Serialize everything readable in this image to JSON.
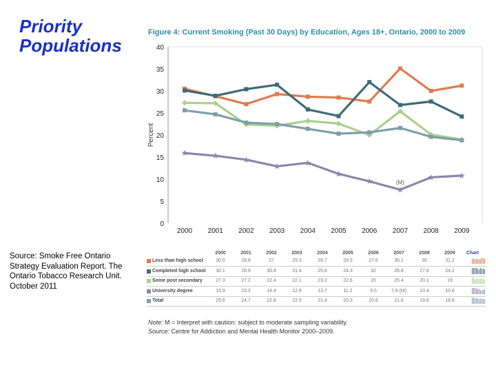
{
  "slide": {
    "title_line1": "Priority",
    "title_line2": "Populations",
    "source_text": "Source: Smoke Free Ontario Strategy Evaluation Report. The Ontario Tobacco Research Unit. October 2011"
  },
  "chart_data": {
    "type": "line",
    "title": "Figure 4: Current Smoking (Past 30 Days) by Education, Ages 18+, Ontario, 2000 to 2009",
    "xlabel": "",
    "ylabel": "Percent",
    "x": [
      "2000",
      "2001",
      "2002",
      "2003",
      "2004",
      "2005",
      "2006",
      "2007",
      "2008",
      "2009"
    ],
    "ylim": [
      0,
      40
    ],
    "yticks": [
      0,
      5,
      10,
      15,
      20,
      25,
      30,
      35,
      40
    ],
    "grid": false,
    "annotation": "(M)",
    "series": [
      {
        "name": "Less than high school",
        "color": "#e07b50",
        "values": [
          30.5,
          28.8,
          27,
          29.3,
          28.7,
          28.5,
          27.6,
          35.1,
          30,
          31.2
        ],
        "labels": [
          "30.5",
          "28.8",
          "27",
          "29.3",
          "28.7",
          "28.5",
          "27.6",
          "35.1",
          "30",
          "31.2"
        ]
      },
      {
        "name": "Completed high school",
        "color": "#3d6b78",
        "values": [
          30.1,
          28.9,
          30.4,
          31.4,
          25.8,
          24.3,
          32,
          26.8,
          27.6,
          24.2
        ],
        "labels": [
          "30.1",
          "28.9",
          "30.4",
          "31.4",
          "25.8",
          "24.3",
          "32",
          "26.8",
          "27.6",
          "24.2"
        ]
      },
      {
        "name": "Some post secondary",
        "color": "#a9d18e",
        "values": [
          27.3,
          27.2,
          22.4,
          22.1,
          23.2,
          22.6,
          20,
          25.4,
          20.1,
          19
        ],
        "labels": [
          "27.3",
          "27.2",
          "22.4",
          "22.1",
          "23.2",
          "22.6",
          "20",
          "25.4",
          "20.1",
          "19"
        ]
      },
      {
        "name": "University degree",
        "color": "#8a86a8",
        "values": [
          15.9,
          15.3,
          14.4,
          12.9,
          13.7,
          11.2,
          9.5,
          7.6,
          10.4,
          10.8
        ],
        "labels": [
          "15.9",
          "15.3",
          "14.4",
          "12.9",
          "13.7",
          "11.2",
          "9.5",
          "7.6 (M)",
          "10.4",
          "10.8"
        ]
      },
      {
        "name": "Total",
        "color": "#7d9fa8",
        "values": [
          25.6,
          24.7,
          22.8,
          22.5,
          21.4,
          20.3,
          20.6,
          21.6,
          19.6,
          18.8
        ],
        "labels": [
          "25.6",
          "24.7",
          "22.8",
          "22.5",
          "21.4",
          "20.3",
          "20.6",
          "21.6",
          "19.6",
          "18.8"
        ]
      }
    ],
    "table_chart_header": "Chart"
  },
  "notes": {
    "note_label": "Note:",
    "note_text": " M = Interpret with caution: subject to moderate sampling variability.",
    "source_label": "Source:",
    "source_text": " Centre for Addiction and Mental Health Monitor 2000–2009."
  }
}
